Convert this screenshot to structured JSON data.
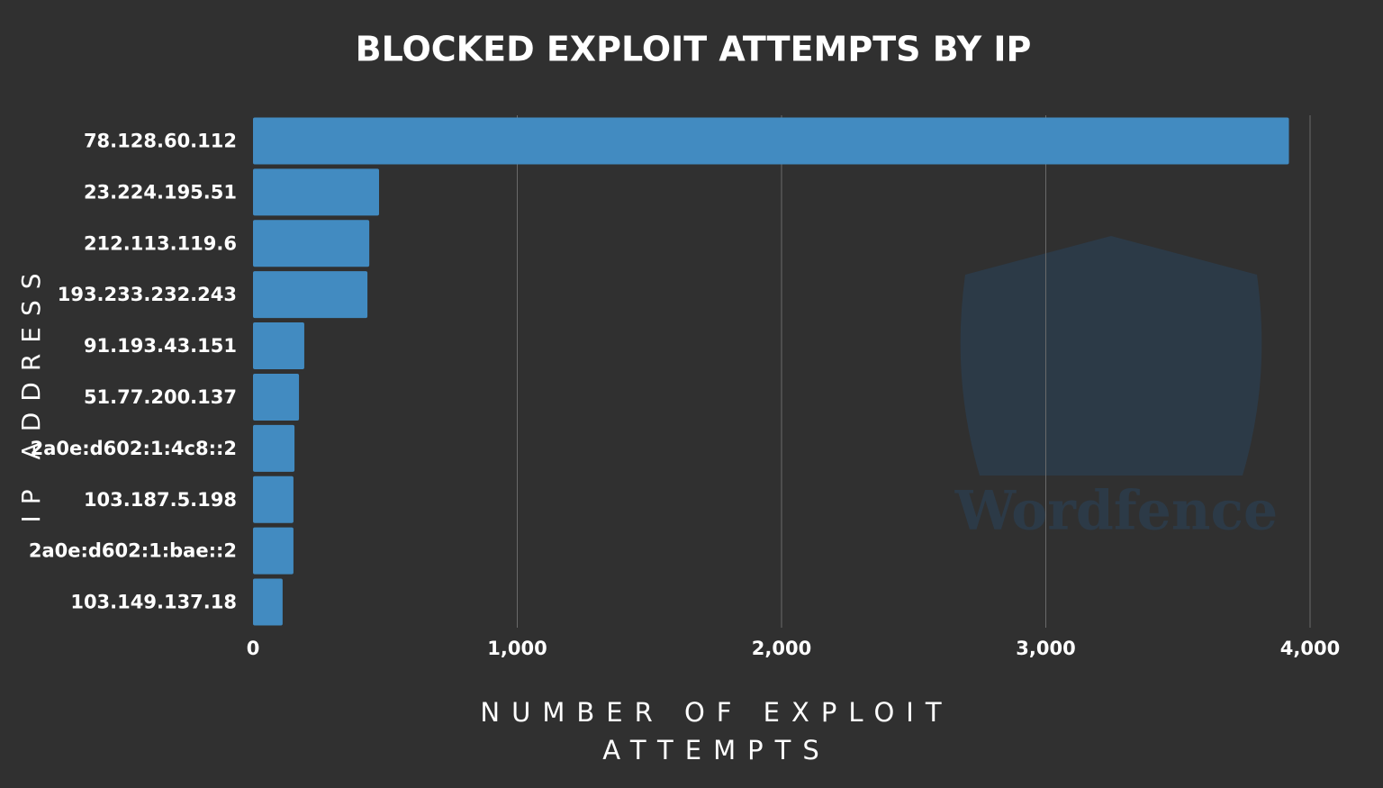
{
  "chart_data": {
    "type": "bar",
    "orientation": "horizontal",
    "title": "BLOCKED EXPLOIT ATTEMPTS BY IP",
    "x_label": "NUMBER OF EXPLOIT ATTEMPTS",
    "y_label": "IP ADDRESS",
    "watermark": "Wordfence",
    "categories": [
      "78.128.60.112",
      "23.224.195.51",
      "212.113.119.6",
      "193.233.232.243",
      "91.193.43.151",
      "51.77.200.137",
      "2a0e:d602:1:4c8::2",
      "103.187.5.198",
      "2a0e:d602:1:bae::2",
      "103.149.137.18"
    ],
    "values": [
      3920,
      477,
      440,
      433,
      194,
      174,
      157,
      153,
      153,
      112
    ],
    "color": "#428bc1",
    "xlim": [
      0,
      4000
    ],
    "xticks": [
      0,
      {
        "value": 1000,
        "label": "1,000"
      },
      {
        "value": 2000,
        "label": "2,000"
      },
      {
        "value": 3000,
        "label": "3,000"
      },
      {
        "value": 4000,
        "label": "4,000"
      }
    ],
    "grid": true
  }
}
